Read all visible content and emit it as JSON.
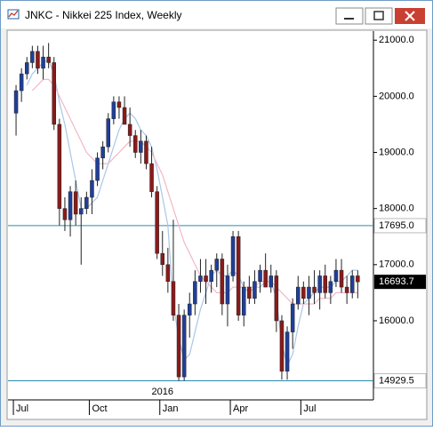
{
  "chart_data": {
    "type": "candlestick",
    "title": "JNKC - Nikkei 225 Index, Weekly",
    "categories": [
      "Jul",
      null,
      null,
      null,
      null,
      null,
      null,
      null,
      null,
      null,
      null,
      null,
      null,
      null,
      "Oct",
      null,
      null,
      null,
      null,
      null,
      null,
      null,
      null,
      null,
      null,
      null,
      null,
      "Jan",
      null,
      null,
      null,
      null,
      null,
      null,
      null,
      null,
      null,
      null,
      null,
      null,
      "Apr",
      null,
      null,
      null,
      null,
      null,
      null,
      null,
      null,
      null,
      null,
      null,
      null,
      "Jul",
      null,
      null,
      null,
      null,
      null,
      null,
      null,
      null,
      null,
      null
    ],
    "year_label": "2016",
    "year_at": 27,
    "open": [
      19700,
      20100,
      20400,
      20600,
      20800,
      20500,
      20700,
      20600,
      19500,
      18000,
      17800,
      18300,
      17900,
      18000,
      18200,
      18500,
      18900,
      19100,
      19600,
      19900,
      19800,
      19500,
      19300,
      19000,
      19200,
      18800,
      18300,
      17200,
      17000,
      16700,
      16100,
      15000,
      16100,
      16300,
      16700,
      16800,
      16700,
      16900,
      17100,
      16300,
      16800,
      17500,
      16100,
      16600,
      16400,
      16700,
      16900,
      16600,
      16800,
      16000,
      15100,
      15800,
      16300,
      16600,
      16400,
      16600,
      16500,
      16800,
      16500,
      16700,
      16900,
      16600,
      16500,
      16800
    ],
    "high": [
      20200,
      20500,
      20700,
      20900,
      20900,
      20900,
      20950,
      20700,
      19600,
      18200,
      18400,
      18500,
      18200,
      18300,
      18700,
      19000,
      19200,
      19700,
      20000,
      20000,
      20000,
      19800,
      19400,
      19400,
      19300,
      19100,
      18400,
      17600,
      17300,
      17800,
      16300,
      16200,
      16500,
      16900,
      17100,
      17100,
      17000,
      17200,
      17200,
      17000,
      17600,
      17600,
      16700,
      16800,
      16900,
      17000,
      17200,
      17000,
      16900,
      16100,
      15900,
      16400,
      16800,
      16700,
      16800,
      16900,
      16900,
      17000,
      16800,
      17100,
      17100,
      16800,
      16900,
      16900
    ],
    "low": [
      19300,
      19900,
      20300,
      20500,
      20400,
      20300,
      20500,
      19400,
      17700,
      17600,
      17500,
      17700,
      17000,
      17900,
      17900,
      18400,
      18700,
      19000,
      19500,
      19600,
      19500,
      19100,
      18900,
      18800,
      18700,
      18200,
      17100,
      16800,
      16500,
      16000,
      14930,
      14930,
      15700,
      16100,
      16500,
      16300,
      16500,
      16600,
      16100,
      15900,
      16700,
      16000,
      15900,
      16300,
      16300,
      16500,
      16600,
      16500,
      15800,
      14950,
      14950,
      15500,
      16200,
      16300,
      16100,
      16300,
      16200,
      16400,
      16300,
      16600,
      16500,
      16300,
      16400,
      16400
    ],
    "close": [
      20100,
      20400,
      20600,
      20800,
      20500,
      20700,
      20600,
      19500,
      18000,
      17800,
      18300,
      17900,
      18000,
      18200,
      18500,
      18900,
      19100,
      19600,
      19900,
      19800,
      19500,
      19300,
      19000,
      19200,
      18800,
      18300,
      17200,
      17000,
      16700,
      16100,
      15000,
      16100,
      16300,
      16700,
      16800,
      16700,
      16900,
      17100,
      16300,
      16800,
      17500,
      16100,
      16600,
      16400,
      16700,
      16900,
      16600,
      16800,
      16000,
      15100,
      15800,
      16300,
      16600,
      16400,
      16600,
      16500,
      16800,
      16500,
      16700,
      16900,
      16600,
      16500,
      16800,
      16693.7
    ],
    "up_color": "#1f3f9a",
    "down_color": "#8b1a1a",
    "series": [
      {
        "color": "#a9c7e8",
        "values": [
          null,
          null,
          20200,
          20400,
          20500,
          20600,
          20650,
          20400,
          19900,
          19500,
          19000,
          18500,
          18000,
          18000,
          18100,
          18200,
          18500,
          18800,
          19100,
          19400,
          19600,
          19700,
          19600,
          19400,
          19300,
          19100,
          18700,
          18200,
          17700,
          16300,
          15700,
          15300,
          15400,
          15800,
          16200,
          16500,
          16800,
          16900,
          16800,
          16800,
          16900,
          16800,
          16600,
          16500,
          16600,
          16600,
          16700,
          16700,
          16400,
          15600,
          15200,
          15400,
          15900,
          16300,
          16400,
          16500,
          16600,
          16600,
          16600,
          16700,
          16700,
          16800,
          16900,
          16900
        ]
      },
      {
        "color": "#f2b8c6",
        "values": [
          null,
          null,
          null,
          20100,
          20200,
          20300,
          20300,
          20200,
          20000,
          19800,
          19600,
          19400,
          19200,
          19000,
          18900,
          18800,
          18800,
          18800,
          18900,
          19000,
          19100,
          19200,
          19200,
          19200,
          19100,
          19000,
          18800,
          18600,
          18300,
          18000,
          17700,
          17400,
          17200,
          17000,
          16800,
          16700,
          16600,
          16500,
          16500,
          16500,
          16600,
          16600,
          16600,
          16600,
          16600,
          16700,
          16700,
          16700,
          16600,
          16500,
          16400,
          16300,
          16300,
          16300,
          16300,
          16300,
          16400,
          16400,
          16400,
          16500,
          16500,
          16500,
          16500,
          16500
        ]
      }
    ],
    "hlines": [
      {
        "value": 17695,
        "label": "17695.0",
        "color": "#2a8cb0"
      },
      {
        "value": 14929.5,
        "label": "14929.5",
        "color": "#2a8cb0"
      }
    ],
    "ylim": [
      14590,
      21130
    ],
    "yticks": [
      {
        "value": 16000,
        "label": "16000.0"
      },
      {
        "value": 17000,
        "label": "17000.0"
      },
      {
        "value": 18000,
        "label": "18000.0"
      },
      {
        "value": 19000,
        "label": "19000.0"
      },
      {
        "value": 20000,
        "label": "20000.0"
      },
      {
        "value": 21000,
        "label": "21000.0"
      }
    ]
  }
}
